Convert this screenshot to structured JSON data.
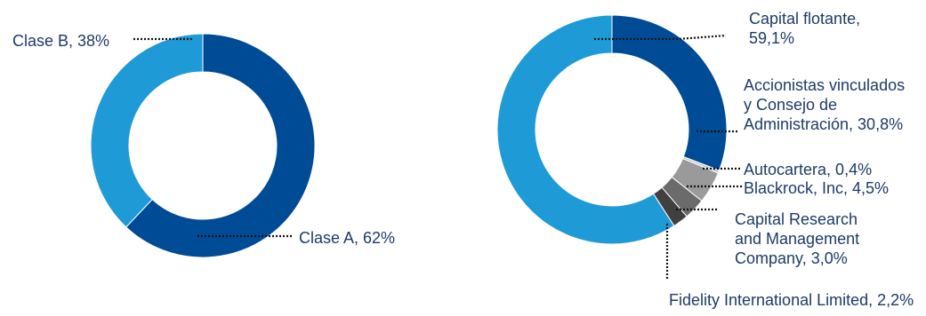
{
  "chart_data": [
    {
      "type": "pie",
      "title": "",
      "slices": [
        {
          "label": "Clase A",
          "value": 62,
          "display": "Clase A, 62%",
          "color": "#004b96"
        },
        {
          "label": "Clase B",
          "value": 38,
          "display": "Clase B, 38%",
          "color": "#1e9ad6"
        }
      ]
    },
    {
      "type": "pie",
      "title": "",
      "slices": [
        {
          "label": "Accionistas vinculados y Consejo de Administración",
          "value": 30.8,
          "display": [
            "Accionistas vinculados",
            "y Consejo de",
            "Administración, 30,8%"
          ],
          "color": "#004b96"
        },
        {
          "label": "Autocartera",
          "value": 0.4,
          "display": [
            "Autocartera, 0,4%"
          ],
          "color": "#c8c8c8"
        },
        {
          "label": "Blackrock, Inc",
          "value": 4.5,
          "display": [
            "Blackrock, Inc, 4,5%"
          ],
          "color": "#9a9a9a"
        },
        {
          "label": "Capital Research and Management Company",
          "value": 3.0,
          "display": [
            "Capital Research",
            "and Management",
            "Company, 3,0%"
          ],
          "color": "#6b6b6b"
        },
        {
          "label": "Fidelity International Limited",
          "value": 2.2,
          "display": [
            "Fidelity International Limited, 2,2%"
          ],
          "color": "#404040"
        },
        {
          "label": "Capital flotante",
          "value": 59.1,
          "display": [
            "Capital flotante,",
            "59,1%"
          ],
          "color": "#1e9ad6"
        }
      ]
    }
  ]
}
